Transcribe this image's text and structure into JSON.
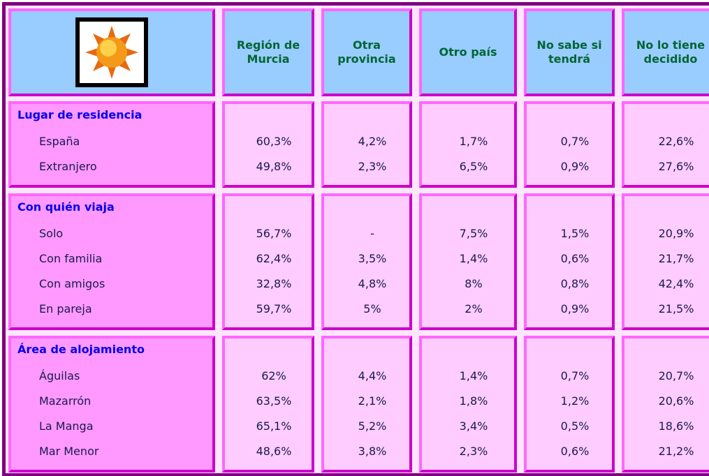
{
  "table": {
    "header": [
      "Región de Murcia",
      "Otra provincia",
      "Otro país",
      "No sabe si tendrá",
      "No lo tiene decidido"
    ],
    "groups": [
      {
        "title": "Lugar de residencia",
        "rows": [
          {
            "label": "España",
            "values": [
              "60,3%",
              "4,2%",
              "1,7%",
              "0,7%",
              "22,6%"
            ]
          },
          {
            "label": "Extranjero",
            "values": [
              "49,8%",
              "2,3%",
              "6,5%",
              "0,9%",
              "27,6%"
            ]
          }
        ]
      },
      {
        "title": "Con quién viaja",
        "rows": [
          {
            "label": "Solo",
            "values": [
              "56,7%",
              "-",
              "7,5%",
              "1,5%",
              "20,9%"
            ]
          },
          {
            "label": "Con familia",
            "values": [
              "62,4%",
              "3,5%",
              "1,4%",
              "0,6%",
              "21,7%"
            ]
          },
          {
            "label": "Con amigos",
            "values": [
              "32,8%",
              "4,8%",
              "8%",
              "0,8%",
              "42,4%"
            ]
          },
          {
            "label": "En pareja",
            "values": [
              "59,7%",
              "5%",
              "2%",
              "0,9%",
              "21,5%"
            ]
          }
        ]
      },
      {
        "title": "Área de alojamiento",
        "rows": [
          {
            "label": "Águilas",
            "values": [
              "62%",
              "4,4%",
              "1,4%",
              "0,7%",
              "20,7%"
            ]
          },
          {
            "label": "Mazarrón",
            "values": [
              "63,5%",
              "2,1%",
              "1,8%",
              "1,2%",
              "20,6%"
            ]
          },
          {
            "label": "La Manga",
            "values": [
              "65,1%",
              "5,2%",
              "3,4%",
              "0,5%",
              "18,6%"
            ]
          },
          {
            "label": "Mar Menor",
            "values": [
              "48,6%",
              "3,8%",
              "2,3%",
              "0,6%",
              "21,2%"
            ]
          }
        ]
      }
    ]
  }
}
